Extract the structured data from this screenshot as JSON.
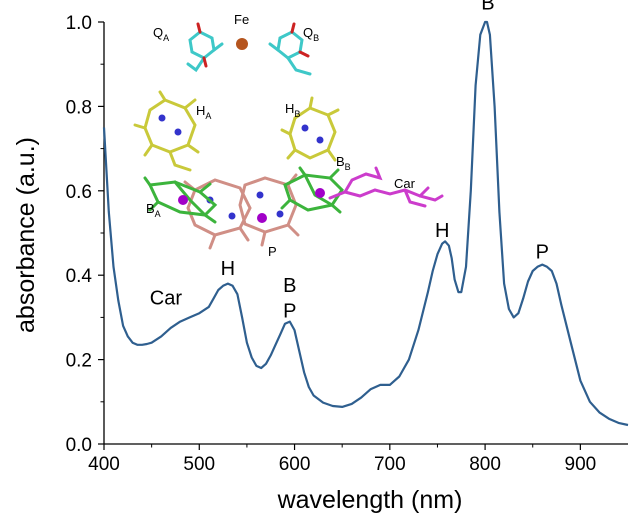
{
  "chart_data": {
    "type": "line",
    "xlabel": "wavelength (nm)",
    "ylabel": "absorbance (a.u.)",
    "xlim": [
      400,
      950
    ],
    "ylim": [
      0.0,
      1.0
    ],
    "xticks": [
      400,
      500,
      600,
      700,
      800,
      900
    ],
    "yticks": [
      0.0,
      0.2,
      0.4,
      0.6,
      0.8,
      1.0
    ],
    "xtick_labels": [
      "400",
      "500",
      "600",
      "700",
      "800",
      "900"
    ],
    "ytick_labels": [
      "0.0",
      "0.2",
      "0.4",
      "0.6",
      "0.8",
      "1.0"
    ],
    "line_color": "#2f5f8f",
    "series": [
      {
        "x": [
          400,
          405,
          410,
          415,
          420,
          425,
          430,
          435,
          440,
          445,
          450,
          460,
          470,
          480,
          490,
          500,
          510,
          515,
          520,
          525,
          530,
          535,
          540,
          545,
          550,
          555,
          560,
          565,
          570,
          575,
          580,
          585,
          590,
          595,
          600,
          605,
          610,
          615,
          620,
          630,
          640,
          650,
          660,
          670,
          680,
          690,
          700,
          710,
          720,
          730,
          740,
          745,
          750,
          755,
          758,
          762,
          765,
          768,
          772,
          775,
          780,
          785,
          790,
          795,
          800,
          802,
          805,
          810,
          815,
          820,
          825,
          830,
          835,
          840,
          845,
          850,
          855,
          860,
          865,
          870,
          875,
          880,
          890,
          900,
          910,
          920,
          930,
          940,
          950
        ],
        "y": [
          0.75,
          0.55,
          0.42,
          0.34,
          0.28,
          0.255,
          0.24,
          0.235,
          0.235,
          0.237,
          0.24,
          0.255,
          0.275,
          0.29,
          0.3,
          0.31,
          0.325,
          0.345,
          0.365,
          0.375,
          0.38,
          0.375,
          0.355,
          0.3,
          0.24,
          0.205,
          0.185,
          0.18,
          0.19,
          0.21,
          0.235,
          0.26,
          0.285,
          0.29,
          0.27,
          0.22,
          0.17,
          0.135,
          0.115,
          0.098,
          0.09,
          0.088,
          0.095,
          0.11,
          0.13,
          0.14,
          0.14,
          0.16,
          0.2,
          0.27,
          0.36,
          0.41,
          0.45,
          0.475,
          0.48,
          0.47,
          0.44,
          0.39,
          0.36,
          0.36,
          0.42,
          0.6,
          0.85,
          0.97,
          1.0,
          1.0,
          0.97,
          0.8,
          0.55,
          0.38,
          0.32,
          0.3,
          0.31,
          0.345,
          0.385,
          0.41,
          0.42,
          0.425,
          0.42,
          0.41,
          0.38,
          0.33,
          0.24,
          0.15,
          0.1,
          0.075,
          0.06,
          0.05,
          0.045
        ]
      }
    ],
    "annotations": [
      {
        "text": "Car",
        "x": 465,
        "y": 0.33
      },
      {
        "text": "H",
        "x": 530,
        "y": 0.4
      },
      {
        "text": "B",
        "x": 595,
        "y": 0.36
      },
      {
        "text": "P",
        "x": 595,
        "y": 0.3
      },
      {
        "text": "H",
        "x": 755,
        "y": 0.49
      },
      {
        "text": "B",
        "x": 803,
        "y": 1.03
      },
      {
        "text": "P",
        "x": 860,
        "y": 0.44
      }
    ]
  },
  "inset": {
    "labels": {
      "fe": "Fe",
      "qa_main": "Q",
      "qa_sub": "A",
      "qb_main": "Q",
      "qb_sub": "B",
      "ha_main": "H",
      "ha_sub": "A",
      "hb_main": "H",
      "hb_sub": "B",
      "ba_main": "B",
      "ba_sub": "A",
      "bb_main": "B",
      "bb_sub": "B",
      "car": "Car",
      "p": "P"
    },
    "colors": {
      "quinone": "#3ec8c8",
      "iron": "#b5551e",
      "pheophytin": "#c9c93a",
      "bchl_accessory": "#3cb43c",
      "special_pair": "#d08f86",
      "carotenoid": "#cc3ccc",
      "magnesium": "#a100c8",
      "nitrogen": "#3333cc",
      "oxygen": "#cc2222"
    }
  }
}
